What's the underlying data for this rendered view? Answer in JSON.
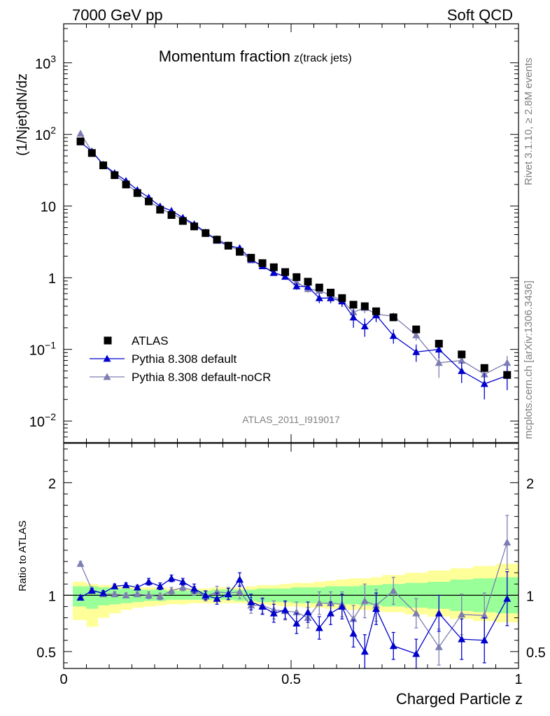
{
  "header": {
    "left": "7000 GeV pp",
    "right": "Soft QCD"
  },
  "side": {
    "rivet": "Rivet 3.1.10, ≥ 2.8M events",
    "source": "mcplots.cern.ch [arXiv:1306.3436]"
  },
  "analysis_id": "ATLAS_2011_I919017",
  "chart_data": [
    {
      "type": "scatter",
      "panel": "main",
      "title": "Momentum fraction",
      "title_sub": "z(track jets)",
      "ylabel": "(1/Njet)dN/dz",
      "yscale": "log",
      "ylim": [
        0.005,
        3500
      ],
      "xlim": [
        0,
        1
      ],
      "y_tick_labels": [
        "10^-2",
        "10^-1",
        "1",
        "10",
        "10^2",
        "10^3"
      ],
      "legend_position": "lower-left",
      "legend": [
        "ATLAS",
        "Pythia 8.308 default",
        "Pythia 8.308 default-noCR"
      ],
      "colors": {
        "data": "#000000",
        "default": "#0000cc",
        "noCR": "#7d7db3"
      },
      "x": [
        0.037,
        0.062,
        0.087,
        0.112,
        0.137,
        0.162,
        0.187,
        0.212,
        0.237,
        0.262,
        0.287,
        0.312,
        0.337,
        0.362,
        0.387,
        0.412,
        0.437,
        0.462,
        0.487,
        0.512,
        0.537,
        0.562,
        0.587,
        0.612,
        0.637,
        0.662,
        0.687,
        0.725,
        0.775,
        0.825,
        0.875,
        0.925,
        0.975
      ],
      "series": [
        {
          "name": "ATLAS",
          "values": [
            80,
            55,
            37,
            27,
            20,
            15.2,
            11.6,
            8.9,
            7.5,
            6.2,
            5.2,
            4.2,
            3.4,
            2.8,
            2.3,
            1.9,
            1.6,
            1.4,
            1.2,
            1.02,
            0.88,
            0.73,
            0.62,
            0.52,
            0.42,
            0.4,
            0.34,
            0.28,
            0.19,
            0.12,
            0.085,
            0.055,
            0.044
          ]
        },
        {
          "name": "Pythia 8.308 default",
          "values": [
            78,
            58,
            38,
            29,
            22.5,
            16.8,
            13.2,
            9.9,
            8.6,
            6.9,
            5.6,
            4.3,
            3.3,
            2.8,
            2.6,
            1.8,
            1.45,
            1.17,
            1.04,
            0.76,
            0.75,
            0.52,
            0.52,
            0.47,
            0.28,
            0.21,
            0.3,
            0.155,
            0.092,
            0.1,
            0.05,
            0.033,
            0.043
          ],
          "errors": [
            0,
            0,
            0,
            0,
            0,
            0,
            0,
            0,
            0,
            0,
            0,
            0,
            0,
            0,
            0,
            0,
            0,
            0,
            0.08,
            0.08,
            0.08,
            0.08,
            0.08,
            0.08,
            0.08,
            0.06,
            0.06,
            0.035,
            0.025,
            0.025,
            0.016,
            0.013,
            0.016
          ]
        },
        {
          "name": "Pythia 8.308 default-noCR",
          "values": [
            103,
            58,
            37.5,
            27.5,
            20.5,
            15.4,
            11.7,
            9.3,
            7.8,
            6.6,
            5.4,
            4.2,
            3.5,
            2.86,
            2.35,
            1.75,
            1.46,
            1.2,
            1.03,
            0.87,
            0.7,
            0.66,
            0.57,
            0.48,
            0.33,
            0.38,
            0.31,
            0.29,
            0.158,
            0.065,
            0.07,
            0.045,
            0.065
          ],
          "errors": [
            0,
            0,
            0,
            0,
            0,
            0,
            0,
            0,
            0,
            0,
            0,
            0,
            0,
            0,
            0,
            0,
            0,
            0,
            0.08,
            0.08,
            0.08,
            0.08,
            0.08,
            0.08,
            0.08,
            0.06,
            0.06,
            0.035,
            0.025,
            0.025,
            0.016,
            0.013,
            0.016
          ]
        }
      ]
    },
    {
      "type": "scatter",
      "panel": "ratio",
      "xlabel": "Charged Particle z",
      "ylabel": "Ratio to ATLAS",
      "ylim": [
        0.35,
        2.35
      ],
      "xlim": [
        0,
        1
      ],
      "x_tick_labels": [
        "0",
        "0.5",
        "1"
      ],
      "y_tick_labels": [
        "0.5",
        "1",
        "2"
      ],
      "reference_line": 1,
      "band_colors": {
        "inner": "#99ff99",
        "outer": "#ffff99"
      },
      "band_edges": [
        0.02,
        0.05,
        0.075,
        0.1,
        0.125,
        0.15,
        0.175,
        0.2,
        0.225,
        0.25,
        0.275,
        0.3,
        0.325,
        0.35,
        0.375,
        0.4,
        0.425,
        0.45,
        0.475,
        0.5,
        0.525,
        0.55,
        0.575,
        0.6,
        0.625,
        0.65,
        0.675,
        0.7,
        0.75,
        0.8,
        0.85,
        0.9,
        0.95,
        1.0
      ],
      "band_inner": [
        [
          0.9,
          1.08
        ],
        [
          0.88,
          1.08
        ],
        [
          0.91,
          1.07
        ],
        [
          0.92,
          1.06
        ],
        [
          0.93,
          1.06
        ],
        [
          0.94,
          1.05
        ],
        [
          0.95,
          1.05
        ],
        [
          0.95,
          1.05
        ],
        [
          0.96,
          1.04
        ],
        [
          0.96,
          1.04
        ],
        [
          0.96,
          1.04
        ],
        [
          0.96,
          1.04
        ],
        [
          0.96,
          1.05
        ],
        [
          0.96,
          1.05
        ],
        [
          0.95,
          1.05
        ],
        [
          0.95,
          1.05
        ],
        [
          0.94,
          1.06
        ],
        [
          0.94,
          1.06
        ],
        [
          0.94,
          1.06
        ],
        [
          0.93,
          1.07
        ],
        [
          0.93,
          1.07
        ],
        [
          0.93,
          1.07
        ],
        [
          0.92,
          1.08
        ],
        [
          0.92,
          1.08
        ],
        [
          0.92,
          1.08
        ],
        [
          0.91,
          1.09
        ],
        [
          0.91,
          1.09
        ],
        [
          0.9,
          1.1
        ],
        [
          0.89,
          1.11
        ],
        [
          0.88,
          1.12
        ],
        [
          0.86,
          1.14
        ],
        [
          0.85,
          1.15
        ],
        [
          0.84,
          1.16
        ]
      ],
      "band_outer": [
        [
          0.78,
          1.12
        ],
        [
          0.72,
          1.1
        ],
        [
          0.8,
          1.09
        ],
        [
          0.84,
          1.09
        ],
        [
          0.87,
          1.08
        ],
        [
          0.89,
          1.07
        ],
        [
          0.9,
          1.07
        ],
        [
          0.91,
          1.07
        ],
        [
          0.92,
          1.06
        ],
        [
          0.92,
          1.06
        ],
        [
          0.93,
          1.06
        ],
        [
          0.93,
          1.06
        ],
        [
          0.93,
          1.07
        ],
        [
          0.93,
          1.07
        ],
        [
          0.93,
          1.07
        ],
        [
          0.92,
          1.08
        ],
        [
          0.92,
          1.09
        ],
        [
          0.91,
          1.09
        ],
        [
          0.9,
          1.1
        ],
        [
          0.9,
          1.11
        ],
        [
          0.89,
          1.11
        ],
        [
          0.89,
          1.12
        ],
        [
          0.88,
          1.13
        ],
        [
          0.88,
          1.14
        ],
        [
          0.87,
          1.15
        ],
        [
          0.87,
          1.15
        ],
        [
          0.86,
          1.16
        ],
        [
          0.85,
          1.18
        ],
        [
          0.83,
          1.2
        ],
        [
          0.81,
          1.22
        ],
        [
          0.79,
          1.24
        ],
        [
          0.77,
          1.26
        ],
        [
          0.76,
          1.28
        ]
      ],
      "series": [
        {
          "name": "Pythia 8.308 default",
          "values": [
            0.98,
            1.04,
            1.02,
            1.08,
            1.09,
            1.07,
            1.12,
            1.08,
            1.15,
            1.12,
            1.06,
            1.0,
            0.97,
            1.01,
            1.14,
            0.94,
            0.9,
            0.84,
            0.87,
            0.75,
            0.85,
            0.71,
            0.84,
            0.9,
            0.66,
            0.5,
            0.88,
            0.55,
            0.48,
            0.84,
            0.61,
            0.6,
            0.97
          ],
          "errors": [
            0.02,
            0.02,
            0.02,
            0.02,
            0.02,
            0.02,
            0.03,
            0.03,
            0.03,
            0.03,
            0.04,
            0.04,
            0.05,
            0.05,
            0.06,
            0.07,
            0.07,
            0.08,
            0.08,
            0.09,
            0.09,
            0.1,
            0.1,
            0.11,
            0.12,
            0.15,
            0.14,
            0.12,
            0.13,
            0.16,
            0.18,
            0.2,
            0.24
          ]
        },
        {
          "name": "Pythia 8.308 default-noCR",
          "values": [
            1.28,
            1.05,
            1.01,
            1.01,
            1.0,
            1.01,
            1.0,
            0.99,
            1.04,
            1.07,
            1.04,
            0.99,
            1.03,
            1.02,
            1.03,
            0.91,
            0.91,
            0.87,
            0.86,
            0.85,
            0.8,
            0.93,
            0.93,
            0.92,
            0.79,
            0.95,
            0.91,
            1.04,
            0.84,
            0.54,
            0.83,
            0.82,
            1.47
          ],
          "errors": [
            0.02,
            0.02,
            0.02,
            0.02,
            0.02,
            0.02,
            0.03,
            0.03,
            0.03,
            0.03,
            0.04,
            0.04,
            0.05,
            0.05,
            0.06,
            0.07,
            0.07,
            0.08,
            0.08,
            0.09,
            0.09,
            0.1,
            0.1,
            0.11,
            0.12,
            0.15,
            0.14,
            0.12,
            0.13,
            0.16,
            0.18,
            0.2,
            0.24
          ]
        }
      ]
    }
  ]
}
